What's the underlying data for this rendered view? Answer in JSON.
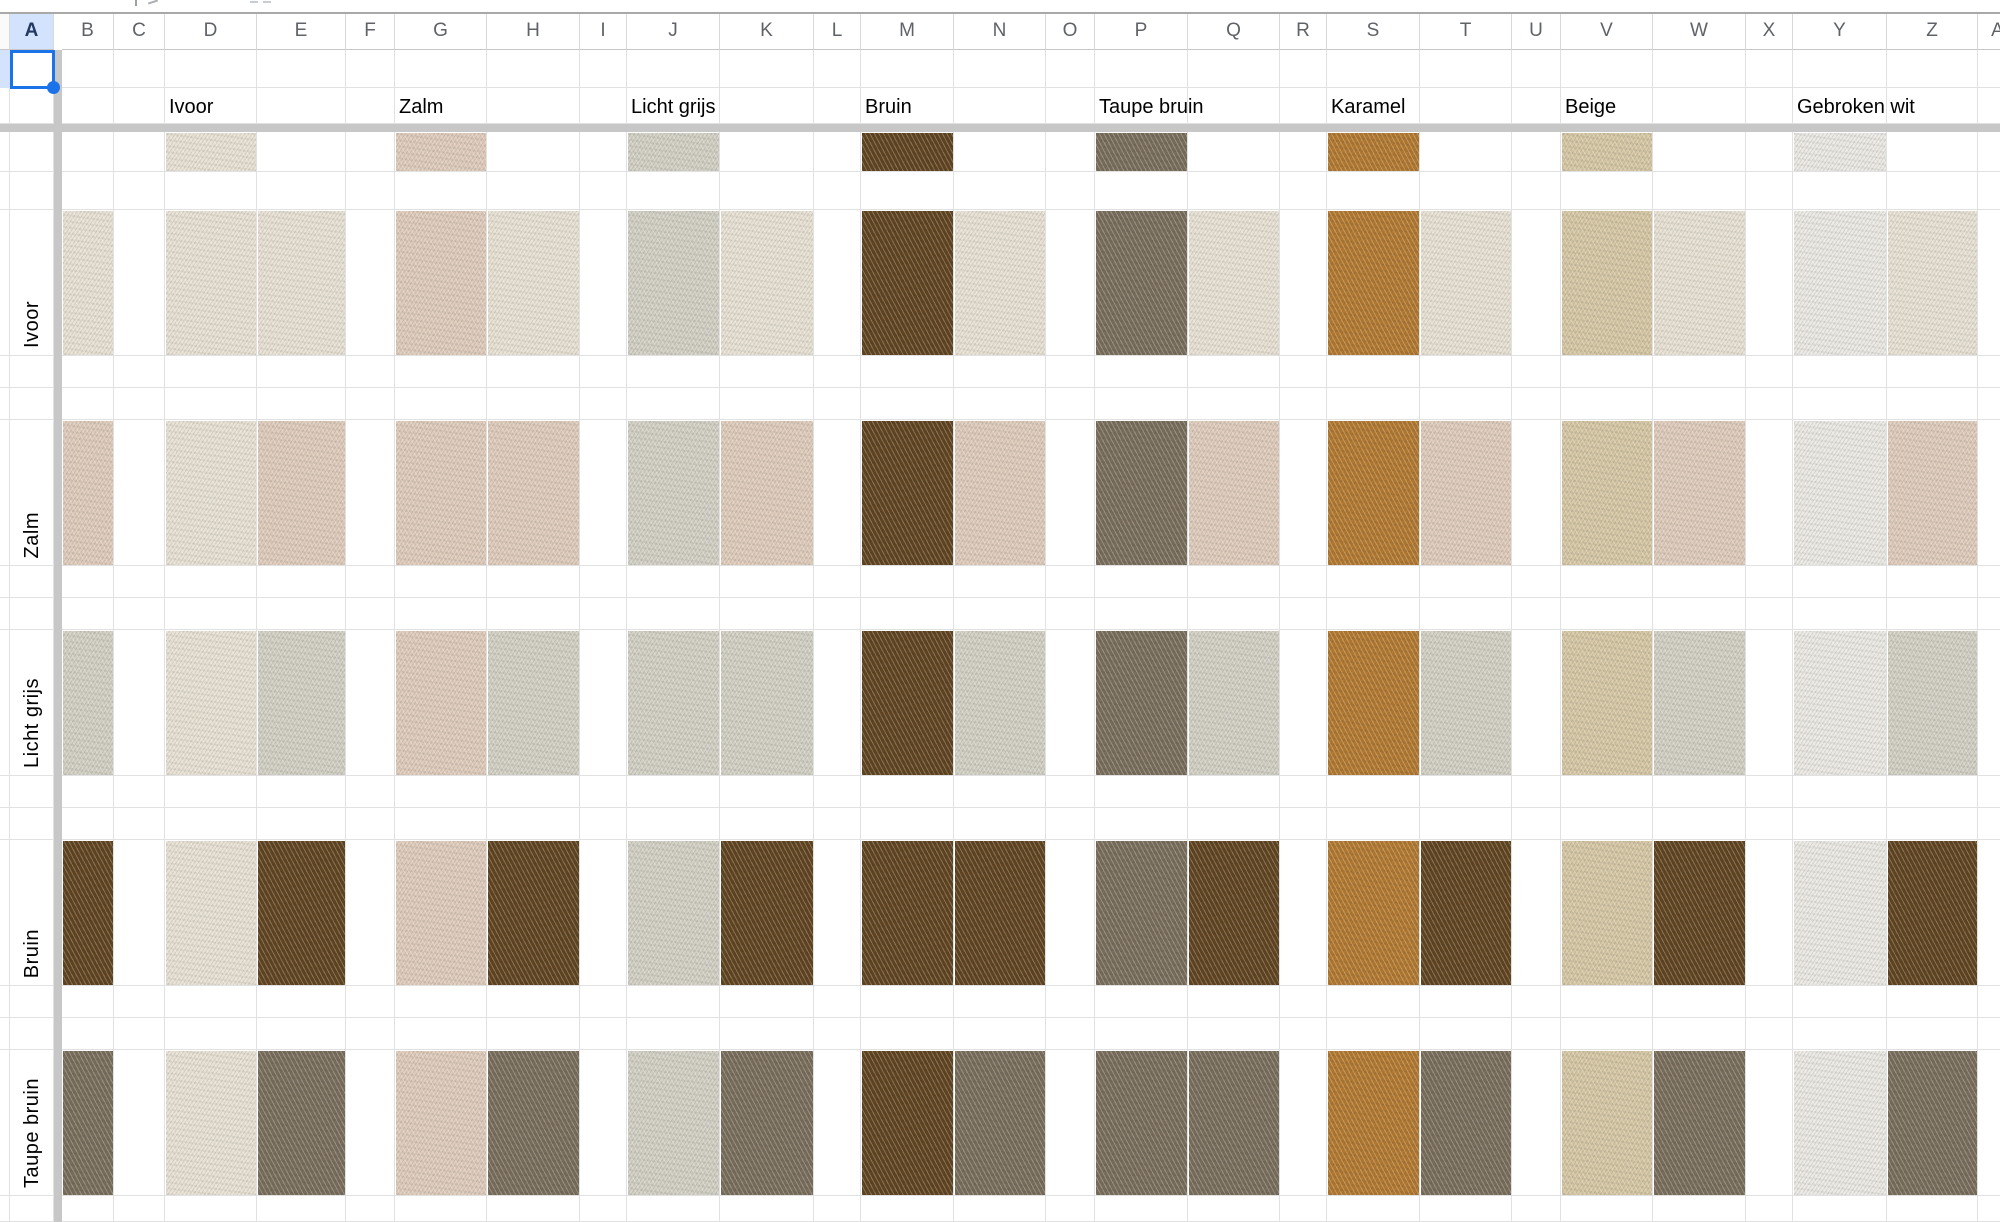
{
  "sheet": {
    "column_headers": [
      "A",
      "B",
      "C",
      "D",
      "E",
      "F",
      "G",
      "H",
      "I",
      "J",
      "K",
      "L",
      "M",
      "N",
      "O",
      "P",
      "Q",
      "R",
      "S",
      "T",
      "U",
      "V",
      "W",
      "X",
      "Y",
      "Z",
      "A"
    ],
    "selected_cell": "A1",
    "selected_column": "A",
    "color_groups": [
      {
        "label": "Ivoor",
        "key": "ivoor",
        "columns": [
          "D",
          "E"
        ]
      },
      {
        "label": "Zalm",
        "key": "zalm",
        "columns": [
          "G",
          "H"
        ]
      },
      {
        "label": "Licht grijs",
        "key": "lichtgrijs",
        "columns": [
          "J",
          "K"
        ]
      },
      {
        "label": "Bruin",
        "key": "bruin",
        "columns": [
          "M",
          "N"
        ]
      },
      {
        "label": "Taupe bruin",
        "key": "taupebruin",
        "columns": [
          "P",
          "Q"
        ]
      },
      {
        "label": "Karamel",
        "key": "karamel",
        "columns": [
          "S",
          "T"
        ]
      },
      {
        "label": "Beige",
        "key": "beige",
        "columns": [
          "V",
          "W"
        ]
      },
      {
        "label": "Gebroken wit",
        "key": "gebrokenwit",
        "columns": [
          "Y",
          "Z"
        ]
      }
    ],
    "data_rows": [
      {
        "label": "Ivoor",
        "key": "ivoor"
      },
      {
        "label": "Zalm",
        "key": "zalm"
      },
      {
        "label": "Licht grijs",
        "key": "lichtgrijs"
      },
      {
        "label": "Bruin",
        "key": "bruin"
      },
      {
        "label": "Taupe bruin",
        "key": "taupebruin"
      }
    ],
    "swatch_colors": {
      "ivoor": "#e7e1d5",
      "zalm": "#decbbc",
      "lichtgrijs": "#d1d0c5",
      "bruin": "#5f4320",
      "taupebruin": "#786d5c",
      "karamel": "#b1782f",
      "beige": "#d5c7a5",
      "gebrokenwit": "#eae9e5"
    },
    "ui_colors": {
      "selection": "#1a73e8",
      "selected_header_bg": "#d3e3fd",
      "selected_header_text": "#223a63",
      "header_text": "#5f6368",
      "gridline": "#e1e1e1",
      "frozen_divider": "#c7c7c7"
    }
  }
}
